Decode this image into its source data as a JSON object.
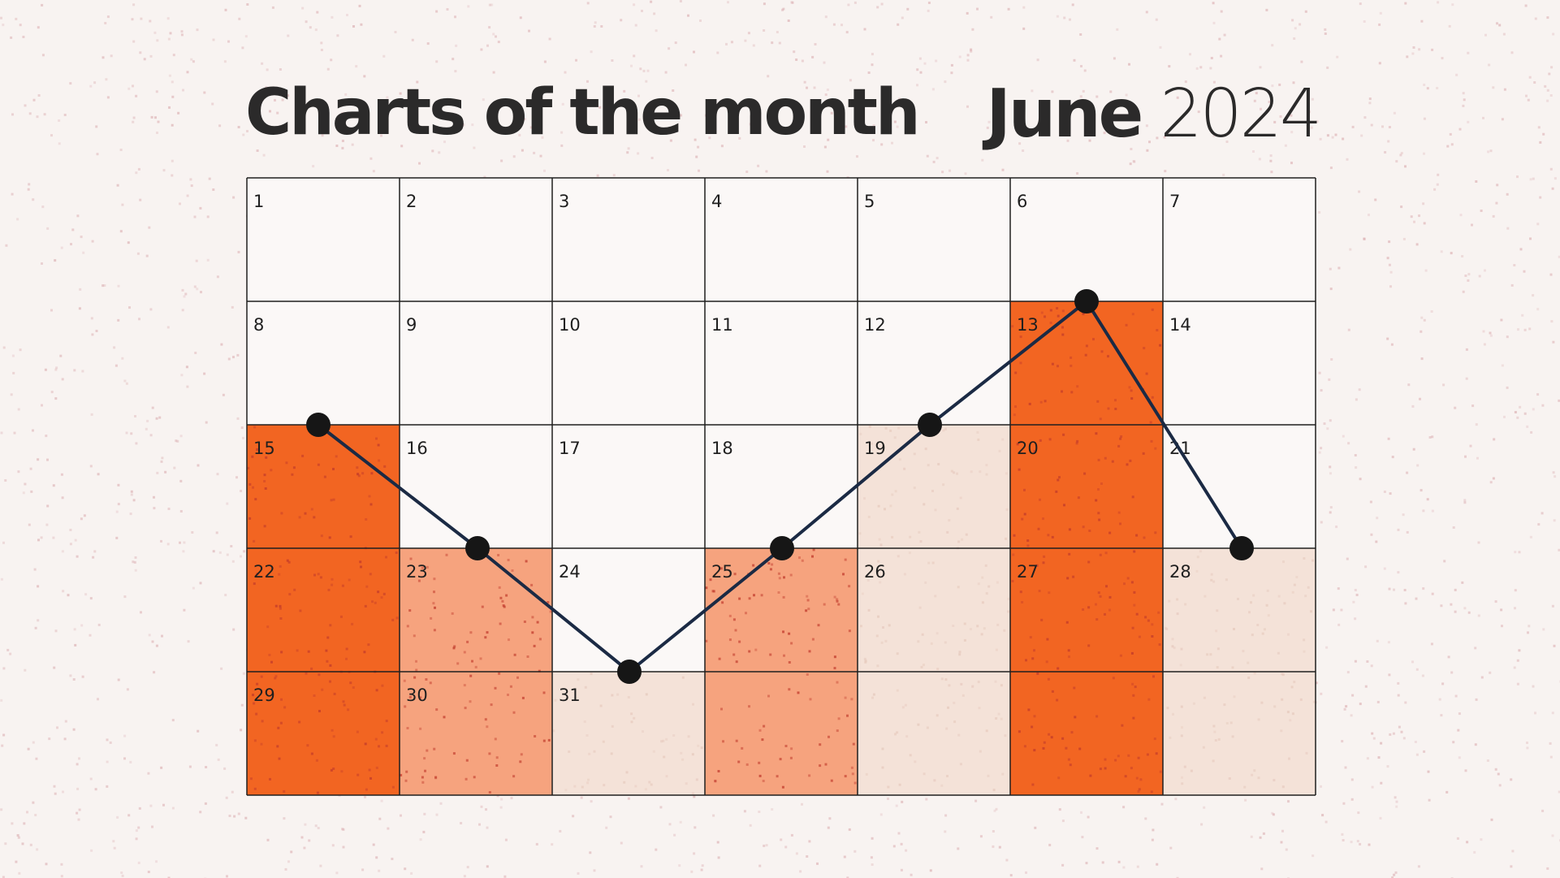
{
  "title": "Charts of the month",
  "month": "June",
  "year": "2024",
  "colors": {
    "background": "#f8f3f1",
    "bar_dark": "#f26522",
    "bar_medium": "#f6a37e",
    "bar_light": "#f4e2d8",
    "line": "#1b2a44",
    "marker": "#161616",
    "grid": "#1f1f1f"
  },
  "chart_data": {
    "type": "calendar-bar-line",
    "columns": [
      "1",
      "2",
      "3",
      "4",
      "5",
      "6",
      "7"
    ],
    "day_labels": [
      "1",
      "2",
      "3",
      "4",
      "5",
      "6",
      "7",
      "8",
      "9",
      "10",
      "11",
      "12",
      "13",
      "14",
      "15",
      "16",
      "17",
      "18",
      "19",
      "20",
      "21",
      "22",
      "23",
      "24",
      "25",
      "26",
      "27",
      "28",
      "29",
      "30",
      "31"
    ],
    "rows_shown": 5,
    "bars": [
      {
        "column": 1,
        "height_rows": 3,
        "color": "bar_dark"
      },
      {
        "column": 2,
        "height_rows": 2,
        "color": "bar_medium"
      },
      {
        "column": 3,
        "height_rows": 1,
        "color": "bar_light"
      },
      {
        "column": 4,
        "height_rows": 2,
        "color": "bar_medium"
      },
      {
        "column": 5,
        "height_rows": 3,
        "color": "bar_light"
      },
      {
        "column": 6,
        "height_rows": 4,
        "color": "bar_dark"
      },
      {
        "column": 7,
        "height_rows": 2,
        "color": "bar_light"
      }
    ],
    "line": {
      "values": [
        3,
        2,
        1,
        2,
        3,
        4,
        2
      ]
    },
    "grid": true
  }
}
